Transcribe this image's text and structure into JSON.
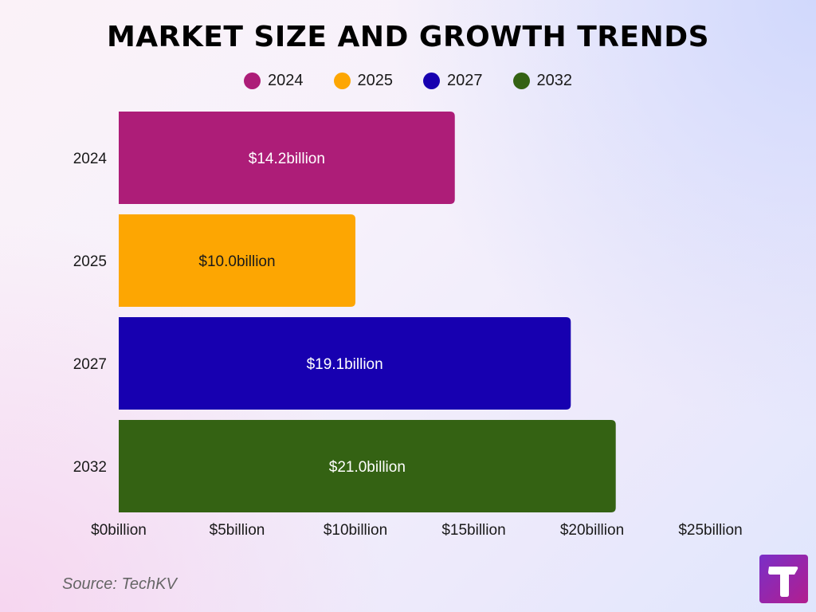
{
  "title": "MARKET SIZE AND GROWTH TRENDS",
  "source": "Source: TechKV",
  "colors": {
    "series": [
      "#ad1d78",
      "#fda602",
      "#1700b0",
      "#346213"
    ],
    "label_dark": "#1a1a1a",
    "label_light": "#ffffff"
  },
  "chart_data": {
    "type": "bar",
    "orientation": "horizontal",
    "title": "MARKET SIZE AND GROWTH TRENDS",
    "categories": [
      "2024",
      "2025",
      "2027",
      "2032"
    ],
    "values": [
      14.2,
      10.0,
      19.1,
      21.0
    ],
    "data_labels": [
      "$14.2billion",
      "$10.0billion",
      "$19.1billion",
      "$21.0billion"
    ],
    "legend": [
      "2024",
      "2025",
      "2027",
      "2032"
    ],
    "legend_position": "top",
    "xlim": [
      0,
      25
    ],
    "x_ticks": [
      0,
      5,
      10,
      15,
      20,
      25
    ],
    "x_tick_labels": [
      "$0billion",
      "$5billion",
      "$10billion",
      "$15billion",
      "$20billion",
      "$25billion"
    ],
    "grid": false
  }
}
